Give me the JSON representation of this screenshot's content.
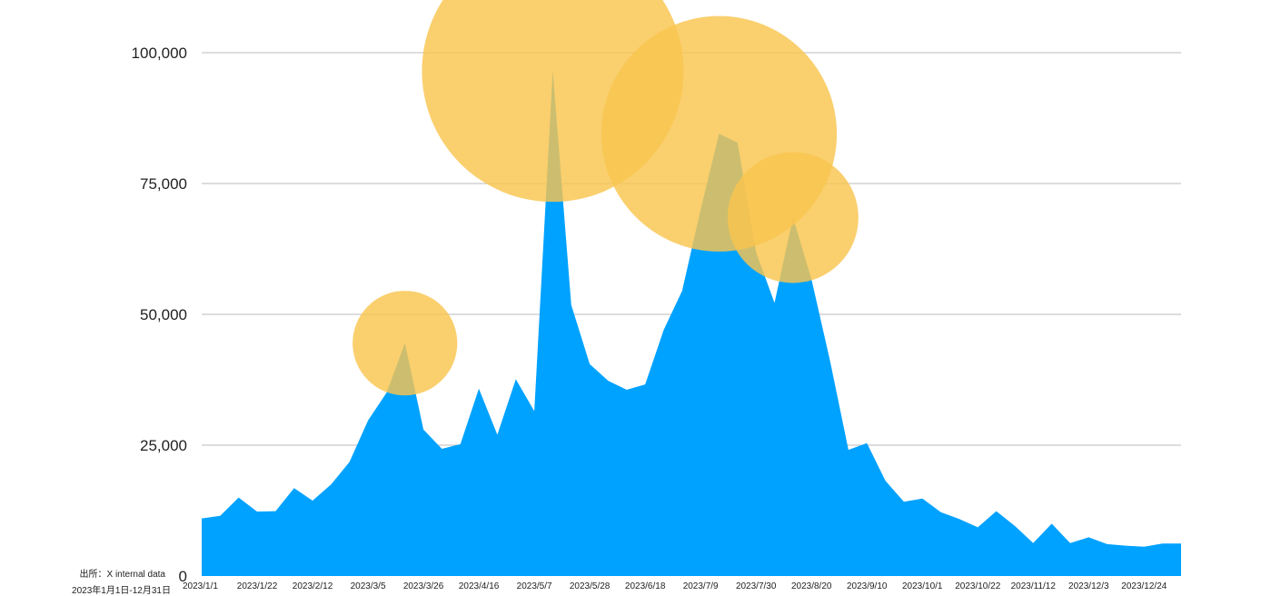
{
  "chart_data": {
    "type": "area",
    "title": "",
    "xlabel": "",
    "ylabel": "",
    "ylim": [
      0,
      100000
    ],
    "yticks": [
      0,
      25000,
      50000,
      75000,
      100000
    ],
    "ytick_labels": [
      "0",
      "25,000",
      "50,000",
      "75,000",
      "100,000"
    ],
    "x_tick_labels": [
      "2023/1/1",
      "2023/1/22",
      "2023/2/12",
      "2023/3/5",
      "2023/3/26",
      "2023/4/16",
      "2023/5/7",
      "2023/5/28",
      "2023/6/18",
      "2023/7/9",
      "2023/7/30",
      "2023/8/20",
      "2023/9/10",
      "2023/10/1",
      "2023/10/22",
      "2023/11/12",
      "2023/12/3",
      "2023/12/24"
    ],
    "x_tick_every": 3,
    "x_start": "2023/1/1",
    "x_step_days": 7,
    "grid": true,
    "series": [
      {
        "values": [
          11000,
          11500,
          15000,
          12300,
          12400,
          16800,
          14400,
          17500,
          21800,
          29700,
          35000,
          44500,
          28000,
          24300,
          25200,
          35800,
          27000,
          37600,
          31500,
          96500,
          51800,
          40500,
          37300,
          35600,
          36600,
          47000,
          54500,
          70000,
          84500,
          82800,
          61900,
          52200,
          68500,
          56700,
          41200,
          24100,
          25400,
          18200,
          14200,
          14800,
          12200,
          10900,
          9300,
          12400,
          9600,
          6300,
          10000,
          6300,
          7400,
          6100,
          5800,
          5600,
          6200,
          6200
        ]
      }
    ],
    "highlights": [
      {
        "index": 11,
        "value": 44500,
        "radius": 10000
      },
      {
        "index": 19,
        "value": 96500,
        "radius": 25000
      },
      {
        "index": 28,
        "value": 84500,
        "radius": 22500
      },
      {
        "index": 32,
        "value": 68500,
        "radius": 12500
      }
    ],
    "colors": {
      "area": "#00a2ff",
      "highlight": "#f9c44e",
      "grid": "#bbbbbb"
    }
  },
  "footer": {
    "source": "出所：X internal data",
    "period": "2023年1月1日-12月31日"
  }
}
